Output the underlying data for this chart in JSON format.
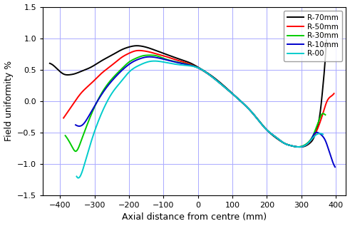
{
  "title": "",
  "xlabel": "Axial distance from centre (mm)",
  "ylabel": "Field uniformity %",
  "xlim": [
    -450,
    430
  ],
  "ylim": [
    -1.5,
    1.5
  ],
  "xticks": [
    -400,
    -300,
    -200,
    -100,
    0,
    100,
    200,
    300,
    400
  ],
  "yticks": [
    -1.5,
    -1.0,
    -0.5,
    0.0,
    0.5,
    1.0,
    1.5
  ],
  "curves": [
    {
      "label": "R-70mm",
      "color": "#000000",
      "xp": [
        -430,
        -410,
        -390,
        -370,
        -360,
        -340,
        -310,
        -280,
        -250,
        -220,
        -200,
        -180,
        -160,
        -140,
        -120,
        -100,
        -60,
        -20,
        0,
        40,
        80,
        120,
        160,
        200,
        230,
        250,
        270,
        290,
        310,
        325,
        335,
        345,
        355,
        362,
        368,
        373
      ],
      "yp": [
        0.6,
        0.52,
        0.43,
        0.42,
        0.43,
        0.47,
        0.54,
        0.64,
        0.73,
        0.82,
        0.86,
        0.88,
        0.87,
        0.84,
        0.8,
        0.76,
        0.68,
        0.6,
        0.54,
        0.4,
        0.22,
        0.02,
        -0.2,
        -0.46,
        -0.6,
        -0.67,
        -0.71,
        -0.73,
        -0.72,
        -0.67,
        -0.6,
        -0.45,
        -0.18,
        0.18,
        0.55,
        0.97
      ]
    },
    {
      "label": "R-50mm",
      "color": "#ff0000",
      "xp": [
        -390,
        -375,
        -360,
        -340,
        -310,
        -280,
        -250,
        -220,
        -200,
        -180,
        -160,
        -140,
        -120,
        -100,
        -60,
        -20,
        0,
        40,
        80,
        120,
        160,
        200,
        230,
        250,
        270,
        290,
        310,
        325,
        335,
        345,
        355,
        365,
        375,
        385,
        395
      ],
      "yp": [
        -0.27,
        -0.15,
        -0.03,
        0.12,
        0.28,
        0.44,
        0.57,
        0.7,
        0.76,
        0.8,
        0.8,
        0.78,
        0.75,
        0.72,
        0.65,
        0.58,
        0.53,
        0.39,
        0.21,
        0.02,
        -0.2,
        -0.46,
        -0.59,
        -0.67,
        -0.71,
        -0.73,
        -0.71,
        -0.65,
        -0.57,
        -0.47,
        -0.33,
        -0.16,
        0.0,
        0.07,
        0.12
      ]
    },
    {
      "label": "R-30mm",
      "color": "#00cc00",
      "xp": [
        -385,
        -373,
        -365,
        -355,
        -340,
        -310,
        -280,
        -250,
        -220,
        -200,
        -180,
        -160,
        -140,
        -120,
        -100,
        -60,
        -20,
        0,
        40,
        80,
        120,
        160,
        200,
        230,
        250,
        270,
        290,
        310,
        325,
        335,
        345,
        352,
        358,
        364,
        370
      ],
      "yp": [
        -0.55,
        -0.65,
        -0.73,
        -0.8,
        -0.65,
        -0.22,
        0.12,
        0.35,
        0.52,
        0.62,
        0.68,
        0.72,
        0.73,
        0.72,
        0.68,
        0.62,
        0.57,
        0.53,
        0.39,
        0.21,
        0.02,
        -0.2,
        -0.46,
        -0.59,
        -0.67,
        -0.71,
        -0.73,
        -0.7,
        -0.63,
        -0.54,
        -0.4,
        -0.3,
        -0.22,
        -0.2,
        -0.22
      ]
    },
    {
      "label": "R-10mm",
      "color": "#0000cc",
      "xp": [
        -355,
        -345,
        -335,
        -320,
        -300,
        -270,
        -240,
        -210,
        -190,
        -170,
        -150,
        -130,
        -110,
        -80,
        -40,
        0,
        40,
        80,
        120,
        160,
        200,
        230,
        250,
        270,
        290,
        310,
        320,
        330,
        338,
        346,
        354,
        362,
        370,
        378,
        388,
        398
      ],
      "yp": [
        -0.38,
        -0.4,
        -0.38,
        -0.27,
        -0.08,
        0.18,
        0.38,
        0.54,
        0.62,
        0.67,
        0.7,
        0.7,
        0.68,
        0.64,
        0.59,
        0.53,
        0.39,
        0.21,
        0.02,
        -0.2,
        -0.46,
        -0.59,
        -0.67,
        -0.71,
        -0.73,
        -0.71,
        -0.67,
        -0.6,
        -0.52,
        -0.5,
        -0.52,
        -0.56,
        -0.63,
        -0.75,
        -0.92,
        -1.05
      ]
    },
    {
      "label": "R-00",
      "color": "#00cccc",
      "xp": [
        -352,
        -345,
        -340,
        -330,
        -310,
        -280,
        -250,
        -220,
        -200,
        -170,
        -140,
        -110,
        -80,
        -40,
        0,
        40,
        80,
        120,
        160,
        200,
        230,
        250,
        270,
        290,
        310,
        320,
        330,
        340,
        350,
        358,
        363
      ],
      "yp": [
        -1.2,
        -1.22,
        -1.18,
        -1.02,
        -0.65,
        -0.2,
        0.12,
        0.33,
        0.46,
        0.57,
        0.63,
        0.63,
        0.6,
        0.57,
        0.53,
        0.39,
        0.21,
        0.02,
        -0.2,
        -0.46,
        -0.59,
        -0.67,
        -0.71,
        -0.73,
        -0.71,
        -0.67,
        -0.61,
        -0.55,
        -0.52,
        -0.52,
        -0.53
      ]
    }
  ],
  "grid_color": "#aaaaff",
  "background": "#ffffff"
}
